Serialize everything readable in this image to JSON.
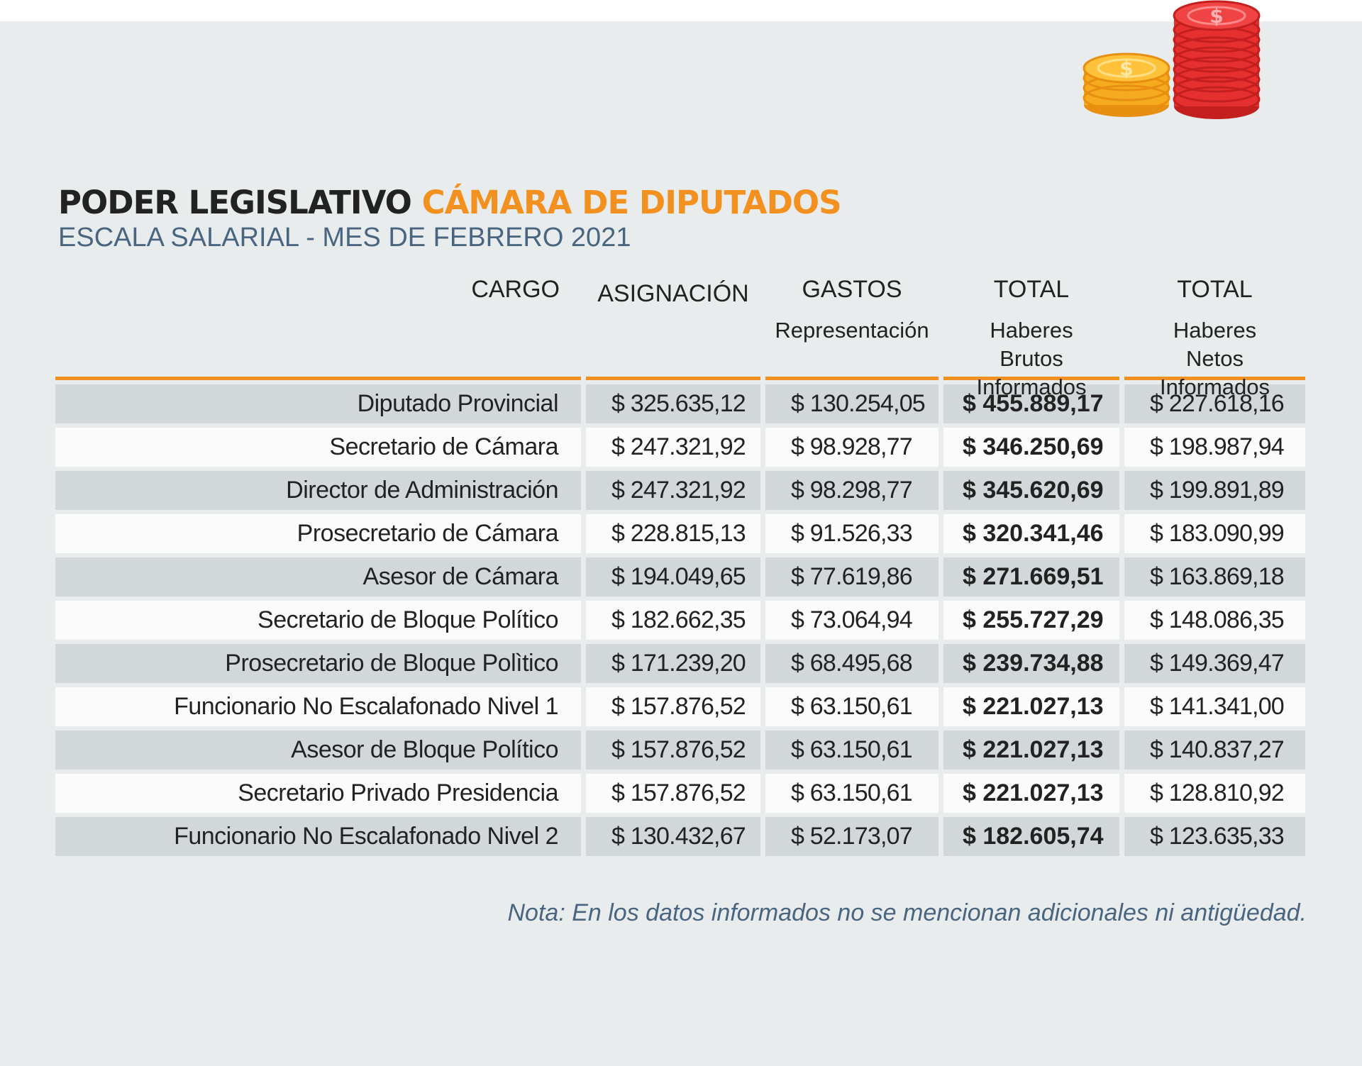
{
  "title": {
    "part1": "PODER LEGISLATIVO",
    "part2": "CÁMARA DE DIPUTADOS"
  },
  "subtitle": "ESCALA SALARIAL - MES DE FEBRERO 2021",
  "colors": {
    "accent": "#f29120",
    "title": "#222222",
    "subtitle": "#4a6580",
    "panel": "#e8ecec",
    "row_shade": "#d2d8da",
    "row_plain": "#fbfbfb",
    "coin_gold": "#f6ab1e",
    "coin_red": "#e63030"
  },
  "icons": [
    "gold-coin-stack-icon",
    "red-coin-stack-icon"
  ],
  "table": {
    "headers": [
      {
        "line1": "CARGO",
        "line2": ""
      },
      {
        "line1": "ASIGNACIÓN",
        "line2": ""
      },
      {
        "line1": "GASTOS",
        "line2": "Representación"
      },
      {
        "line1": "TOTAL",
        "line2": "Haberes Brutos Informados"
      },
      {
        "line1": "TOTAL",
        "line2": "Haberes Netos Informados"
      }
    ],
    "rows": [
      {
        "cargo": "Diputado Provincial",
        "asignacion": "$ 325.635,12",
        "gastos": "$ 130.254,05",
        "bruto": "$ 455.889,17",
        "neto": "$ 227.618,16"
      },
      {
        "cargo": "Secretario de Cámara",
        "asignacion": "$ 247.321,92",
        "gastos": "$ 98.928,77",
        "bruto": "$ 346.250,69",
        "neto": "$ 198.987,94"
      },
      {
        "cargo": "Director de Administración",
        "asignacion": "$ 247.321,92",
        "gastos": "$ 98.298,77",
        "bruto": "$ 345.620,69",
        "neto": "$ 199.891,89"
      },
      {
        "cargo": "Prosecretario de Cámara",
        "asignacion": "$ 228.815,13",
        "gastos": "$ 91.526,33",
        "bruto": "$ 320.341,46",
        "neto": "$ 183.090,99"
      },
      {
        "cargo": "Asesor de Cámara",
        "asignacion": "$ 194.049,65",
        "gastos": "$ 77.619,86",
        "bruto": "$ 271.669,51",
        "neto": "$ 163.869,18"
      },
      {
        "cargo": "Secretario de Bloque Político",
        "asignacion": "$ 182.662,35",
        "gastos": "$ 73.064,94",
        "bruto": "$ 255.727,29",
        "neto": "$ 148.086,35"
      },
      {
        "cargo": "Prosecretario de Bloque Polìtico",
        "asignacion": "$ 171.239,20",
        "gastos": "$ 68.495,68",
        "bruto": "$ 239.734,88",
        "neto": "$ 149.369,47"
      },
      {
        "cargo": "Funcionario No Escalafonado Nivel 1",
        "asignacion": "$ 157.876,52",
        "gastos": "$ 63.150,61",
        "bruto": "$ 221.027,13",
        "neto": "$ 141.341,00"
      },
      {
        "cargo": "Asesor de Bloque Político",
        "asignacion": "$ 157.876,52",
        "gastos": "$ 63.150,61",
        "bruto": "$ 221.027,13",
        "neto": "$ 140.837,27"
      },
      {
        "cargo": "Secretario Privado Presidencia",
        "asignacion": "$ 157.876,52",
        "gastos": "$ 63.150,61",
        "bruto": "$ 221.027,13",
        "neto": "$ 128.810,92"
      },
      {
        "cargo": "Funcionario No Escalafonado Nivel 2",
        "asignacion": "$ 130.432,67",
        "gastos": "$ 52.173,07",
        "bruto": "$ 182.605,74",
        "neto": "$ 123.635,33"
      }
    ]
  },
  "note": "Nota: En los datos informados no se mencionan adicionales ni antigüedad."
}
